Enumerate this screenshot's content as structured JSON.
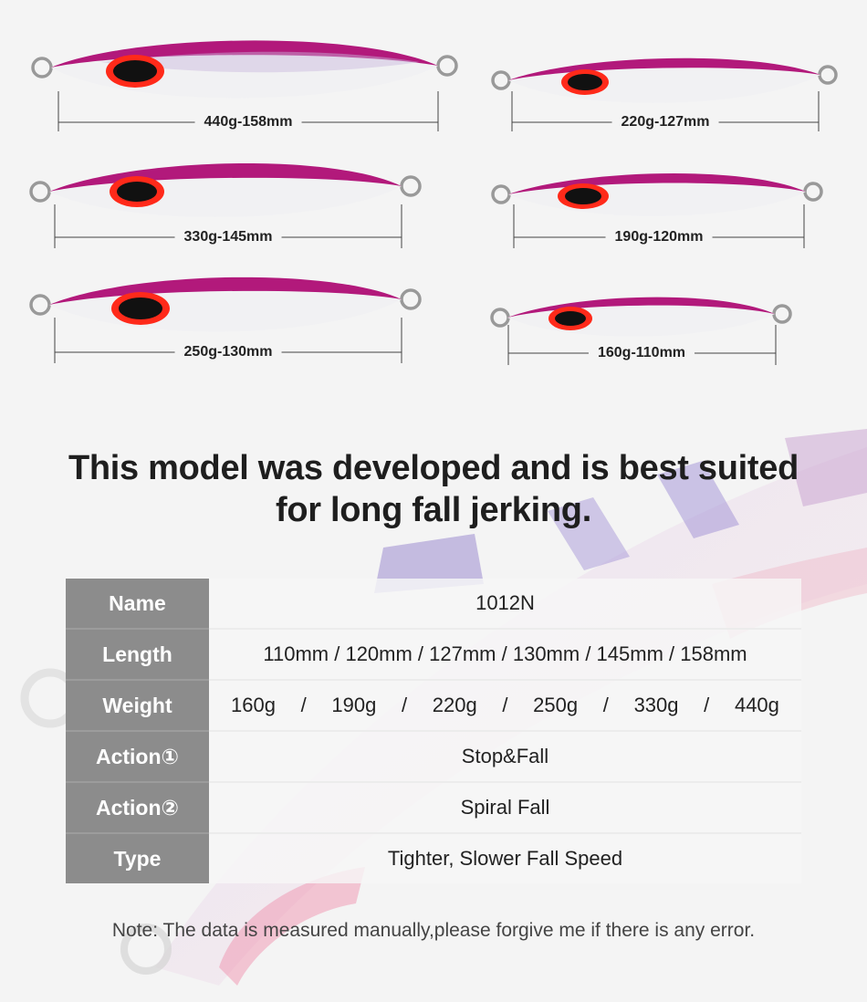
{
  "lures": [
    {
      "label": "440g-158mm"
    },
    {
      "label": "220g-127mm"
    },
    {
      "label": "330g-145mm"
    },
    {
      "label": "190g-120mm"
    },
    {
      "label": "250g-130mm"
    },
    {
      "label": "160g-110mm"
    }
  ],
  "headline": {
    "line1": "This model was developed and is best suited",
    "line2": "for long fall jerking."
  },
  "specs": {
    "name": {
      "label": "Name",
      "value": "1012N"
    },
    "length": {
      "label": "Length",
      "value": "110mm / 120mm / 127mm / 130mm / 145mm / 158mm"
    },
    "weight": {
      "label": "Weight",
      "items": [
        "160g",
        "/",
        "190g",
        "/",
        "220g",
        "/",
        "250g",
        "/",
        "330g",
        "/",
        "440g"
      ]
    },
    "action1": {
      "label": "Action①",
      "value": "Stop&Fall"
    },
    "action2": {
      "label": "Action②",
      "value": "Spiral Fall"
    },
    "type": {
      "label": "Type",
      "value": "Tighter, Slower Fall Speed"
    }
  },
  "note": "Note: The data is measured manually,please forgive me if there is any error.",
  "colors": {
    "lure_back": "#b01a7a",
    "lure_belly": "#f2f2f4",
    "eye_ring": "#ff2a1a",
    "table_label_bg": "#8c8c8c"
  }
}
